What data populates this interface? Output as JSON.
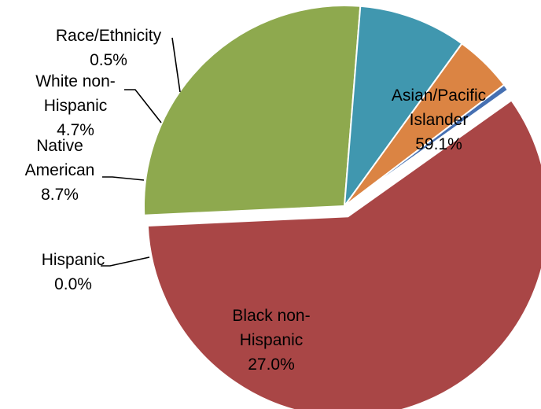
{
  "chart_data": {
    "type": "pie",
    "title": "",
    "slices": [
      {
        "label": "Asian/Pacific Islander",
        "label_lines": [
          "Asian/Pacific",
          "Islander"
        ],
        "value": 59.1,
        "value_label": "59.1%",
        "color": "#A94646",
        "exploded": true
      },
      {
        "label": "Black non-Hispanic",
        "label_lines": [
          "Black non-",
          "Hispanic"
        ],
        "value": 27.0,
        "value_label": "27.0%",
        "color": "#8EA94E",
        "exploded": false
      },
      {
        "label": "Hispanic",
        "label_lines": [
          "Hispanic"
        ],
        "value": 0.0,
        "value_label": "0.0%",
        "color": "#6E548D",
        "exploded": false
      },
      {
        "label": "Native American",
        "label_lines": [
          "Native",
          "American"
        ],
        "value": 8.7,
        "value_label": "8.7%",
        "color": "#4097AF",
        "exploded": false
      },
      {
        "label": "White non-Hispanic",
        "label_lines": [
          "White non-",
          "Hispanic"
        ],
        "value": 4.7,
        "value_label": "4.7%",
        "color": "#DB8443",
        "exploded": false
      },
      {
        "label": "Race/Ethnicity",
        "label_lines": [
          "Race/Ethnicity"
        ],
        "value": 0.5,
        "value_label": "0.5%",
        "color": "#4670B2",
        "exploded": false
      }
    ]
  }
}
